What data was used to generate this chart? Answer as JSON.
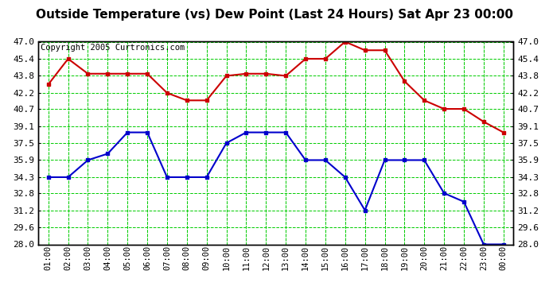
{
  "title": "Outside Temperature (vs) Dew Point (Last 24 Hours) Sat Apr 23 00:00",
  "copyright_text": "Copyright 2005 Curtronics.com",
  "x_labels": [
    "01:00",
    "02:00",
    "03:00",
    "04:00",
    "05:00",
    "06:00",
    "07:00",
    "08:00",
    "09:00",
    "10:00",
    "11:00",
    "12:00",
    "13:00",
    "14:00",
    "15:00",
    "16:00",
    "17:00",
    "18:00",
    "19:00",
    "20:00",
    "21:00",
    "22:00",
    "23:00",
    "00:00"
  ],
  "red_data": [
    43.0,
    45.4,
    44.0,
    44.0,
    44.0,
    44.0,
    42.2,
    41.5,
    41.5,
    43.8,
    44.0,
    44.0,
    43.8,
    45.4,
    45.4,
    47.0,
    46.2,
    46.2,
    43.3,
    41.5,
    40.7,
    40.7,
    39.5,
    38.5
  ],
  "blue_data": [
    34.3,
    34.3,
    35.9,
    36.5,
    38.5,
    38.5,
    34.3,
    34.3,
    34.3,
    37.5,
    38.5,
    38.5,
    38.5,
    35.9,
    35.9,
    34.3,
    31.2,
    35.9,
    35.9,
    35.9,
    32.8,
    32.0,
    28.0,
    28.0
  ],
  "red_color": "#cc0000",
  "blue_color": "#0000cc",
  "bg_color": "#ffffff",
  "plot_bg_color": "#ffffff",
  "grid_color": "#00cc00",
  "border_color": "#000000",
  "y_min": 28.0,
  "y_max": 47.0,
  "y_ticks": [
    47.0,
    45.4,
    43.8,
    42.2,
    40.7,
    39.1,
    37.5,
    35.9,
    34.3,
    32.8,
    31.2,
    29.6,
    28.0
  ],
  "title_fontsize": 11,
  "copyright_fontsize": 7.5,
  "tick_fontsize": 7.5,
  "ytick_fontsize": 8,
  "line_width": 1.5,
  "marker_size": 3.5
}
